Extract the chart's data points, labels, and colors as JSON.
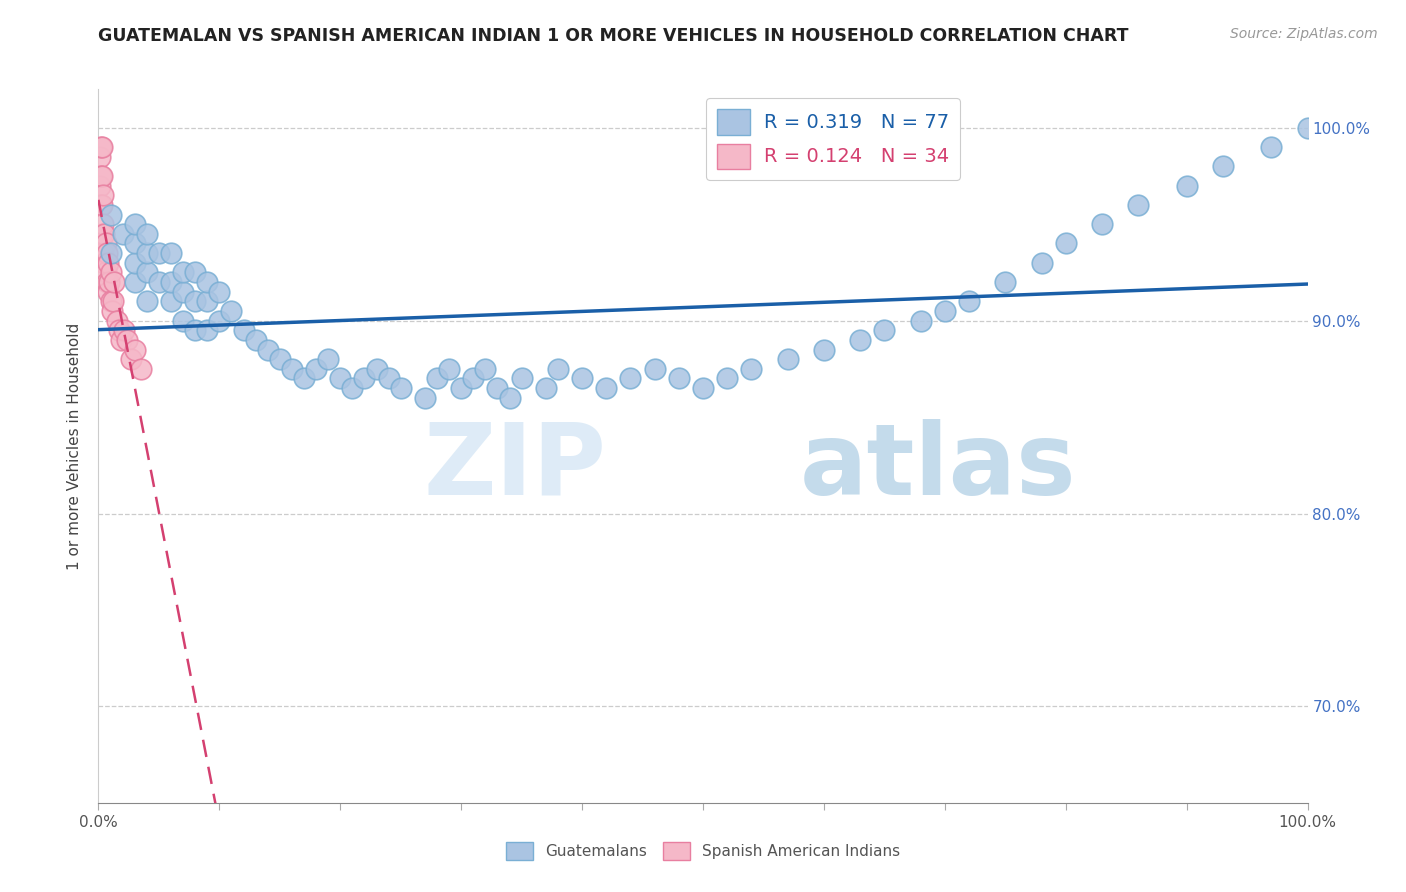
{
  "title": "GUATEMALAN VS SPANISH AMERICAN INDIAN 1 OR MORE VEHICLES IN HOUSEHOLD CORRELATION CHART",
  "source": "Source: ZipAtlas.com",
  "ylabel": "1 or more Vehicles in Household",
  "ylabel_right_ticks": [
    "100.0%",
    "90.0%",
    "80.0%",
    "70.0%"
  ],
  "ylabel_right_vals": [
    1.0,
    0.9,
    0.8,
    0.7
  ],
  "legend_R_blue": "R = 0.319",
  "legend_N_blue": "N = 77",
  "legend_R_pink": "R = 0.124",
  "legend_N_pink": "N = 34",
  "legend_label_blue": "Guatemalans",
  "legend_label_pink": "Spanish American Indians",
  "blue_scatter_x": [
    0.01,
    0.01,
    0.02,
    0.03,
    0.03,
    0.03,
    0.03,
    0.04,
    0.04,
    0.04,
    0.04,
    0.05,
    0.05,
    0.06,
    0.06,
    0.06,
    0.07,
    0.07,
    0.07,
    0.08,
    0.08,
    0.08,
    0.09,
    0.09,
    0.09,
    0.1,
    0.1,
    0.11,
    0.12,
    0.13,
    0.14,
    0.15,
    0.16,
    0.17,
    0.18,
    0.19,
    0.2,
    0.21,
    0.22,
    0.23,
    0.24,
    0.25,
    0.27,
    0.28,
    0.29,
    0.3,
    0.31,
    0.32,
    0.33,
    0.34,
    0.35,
    0.37,
    0.38,
    0.4,
    0.42,
    0.44,
    0.46,
    0.48,
    0.5,
    0.52,
    0.54,
    0.57,
    0.6,
    0.63,
    0.65,
    0.68,
    0.7,
    0.72,
    0.75,
    0.78,
    0.8,
    0.83,
    0.86,
    0.9,
    0.93,
    0.97,
    1.0
  ],
  "blue_scatter_y": [
    0.935,
    0.955,
    0.945,
    0.92,
    0.93,
    0.94,
    0.95,
    0.91,
    0.925,
    0.935,
    0.945,
    0.92,
    0.935,
    0.91,
    0.92,
    0.935,
    0.9,
    0.915,
    0.925,
    0.895,
    0.91,
    0.925,
    0.895,
    0.91,
    0.92,
    0.9,
    0.915,
    0.905,
    0.895,
    0.89,
    0.885,
    0.88,
    0.875,
    0.87,
    0.875,
    0.88,
    0.87,
    0.865,
    0.87,
    0.875,
    0.87,
    0.865,
    0.86,
    0.87,
    0.875,
    0.865,
    0.87,
    0.875,
    0.865,
    0.86,
    0.87,
    0.865,
    0.875,
    0.87,
    0.865,
    0.87,
    0.875,
    0.87,
    0.865,
    0.87,
    0.875,
    0.88,
    0.885,
    0.89,
    0.895,
    0.9,
    0.905,
    0.91,
    0.92,
    0.93,
    0.94,
    0.95,
    0.96,
    0.97,
    0.98,
    0.99,
    1.0
  ],
  "pink_scatter_x": [
    0.001,
    0.001,
    0.002,
    0.002,
    0.002,
    0.003,
    0.003,
    0.003,
    0.003,
    0.004,
    0.004,
    0.004,
    0.005,
    0.005,
    0.006,
    0.006,
    0.007,
    0.007,
    0.008,
    0.008,
    0.009,
    0.01,
    0.01,
    0.011,
    0.012,
    0.013,
    0.015,
    0.017,
    0.019,
    0.021,
    0.024,
    0.027,
    0.03,
    0.035
  ],
  "pink_scatter_y": [
    0.97,
    0.985,
    0.96,
    0.975,
    0.99,
    0.945,
    0.96,
    0.975,
    0.99,
    0.935,
    0.95,
    0.965,
    0.93,
    0.945,
    0.925,
    0.94,
    0.92,
    0.935,
    0.915,
    0.93,
    0.92,
    0.91,
    0.925,
    0.905,
    0.91,
    0.92,
    0.9,
    0.895,
    0.89,
    0.895,
    0.89,
    0.88,
    0.885,
    0.875
  ],
  "blue_color": "#aac4e2",
  "blue_edge": "#7aafd4",
  "blue_line_color": "#1a5fa8",
  "pink_color": "#f5b8c8",
  "pink_edge": "#e87fa0",
  "pink_line_color": "#d44070",
  "xlim": [
    0.0,
    1.0
  ],
  "ylim": [
    0.65,
    1.02
  ],
  "background_color": "#ffffff",
  "watermark_zip": "ZIP",
  "watermark_atlas": "atlas",
  "title_fontsize": 12.5,
  "source_fontsize": 10
}
